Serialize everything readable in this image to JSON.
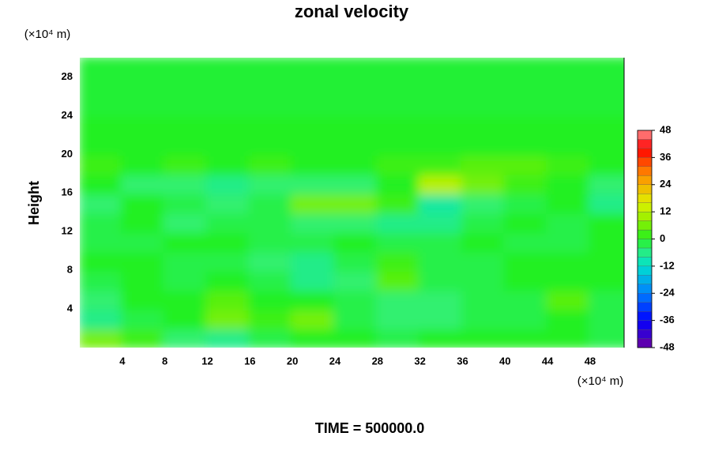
{
  "chart_data": {
    "type": "heatmap",
    "title": "zonal velocity",
    "ylabel": "Height",
    "xunit": "(×10⁴ m)",
    "yunit": "(×10⁴ m)",
    "footer": "TIME = 500000.0",
    "xlim": [
      0,
      51.2
    ],
    "ylim": [
      0,
      30
    ],
    "xticks": [
      4,
      8,
      12,
      16,
      20,
      24,
      28,
      32,
      36,
      40,
      44,
      48
    ],
    "yticks": [
      4,
      8,
      12,
      16,
      20,
      24,
      28
    ],
    "x": [
      2,
      6,
      10,
      14,
      18,
      22,
      26,
      30,
      34,
      38,
      42,
      46,
      50
    ],
    "y": [
      1,
      3,
      5,
      7,
      9,
      11,
      13,
      15,
      17,
      19,
      21,
      23,
      25,
      27,
      29
    ],
    "z": [
      [
        6,
        2,
        -4,
        -6,
        -2,
        0,
        0,
        -2,
        0,
        0,
        0,
        0,
        -2
      ],
      [
        -6,
        -2,
        0,
        6,
        2,
        6,
        -2,
        -4,
        -4,
        -2,
        -2,
        0,
        -2
      ],
      [
        -4,
        0,
        0,
        4,
        0,
        0,
        -2,
        -4,
        -4,
        -2,
        -2,
        4,
        -2
      ],
      [
        -2,
        0,
        -2,
        0,
        -2,
        -6,
        -4,
        4,
        -2,
        -2,
        0,
        0,
        0
      ],
      [
        0,
        0,
        -2,
        -2,
        -4,
        -6,
        -2,
        2,
        -2,
        -2,
        0,
        0,
        0
      ],
      [
        -2,
        -2,
        0,
        0,
        -2,
        -2,
        0,
        -2,
        -2,
        0,
        -2,
        -2,
        0
      ],
      [
        -2,
        0,
        -4,
        -2,
        -2,
        -4,
        -4,
        -6,
        -6,
        -2,
        0,
        -2,
        0
      ],
      [
        -4,
        0,
        -2,
        -4,
        -2,
        6,
        6,
        2,
        -8,
        -4,
        -2,
        0,
        -6
      ],
      [
        0,
        -4,
        -4,
        -6,
        -4,
        -4,
        -4,
        0,
        12,
        6,
        2,
        0,
        -4
      ],
      [
        2,
        0,
        2,
        0,
        2,
        0,
        0,
        2,
        2,
        4,
        4,
        2,
        0
      ],
      [
        0,
        0,
        0,
        0,
        0,
        0,
        0,
        0,
        0,
        0,
        0,
        0,
        0
      ],
      [
        0,
        0,
        0,
        0,
        0,
        0,
        0,
        0,
        0,
        0,
        0,
        0,
        0
      ],
      [
        -1,
        -1,
        -1,
        -1,
        -1,
        -1,
        -1,
        -1,
        -1,
        -1,
        -1,
        -1,
        -1
      ],
      [
        -1,
        -1,
        -1,
        -1,
        -1,
        -1,
        -1,
        -1,
        -1,
        -1,
        -1,
        -1,
        -1
      ],
      [
        -1,
        -1,
        -1,
        -1,
        -1,
        -1,
        -1,
        -1,
        -1,
        -1,
        -1,
        -1,
        -1
      ]
    ],
    "clim": [
      -48,
      48
    ],
    "cticks": [
      -48,
      -36,
      -24,
      -12,
      0,
      12,
      24,
      36,
      48
    ]
  }
}
